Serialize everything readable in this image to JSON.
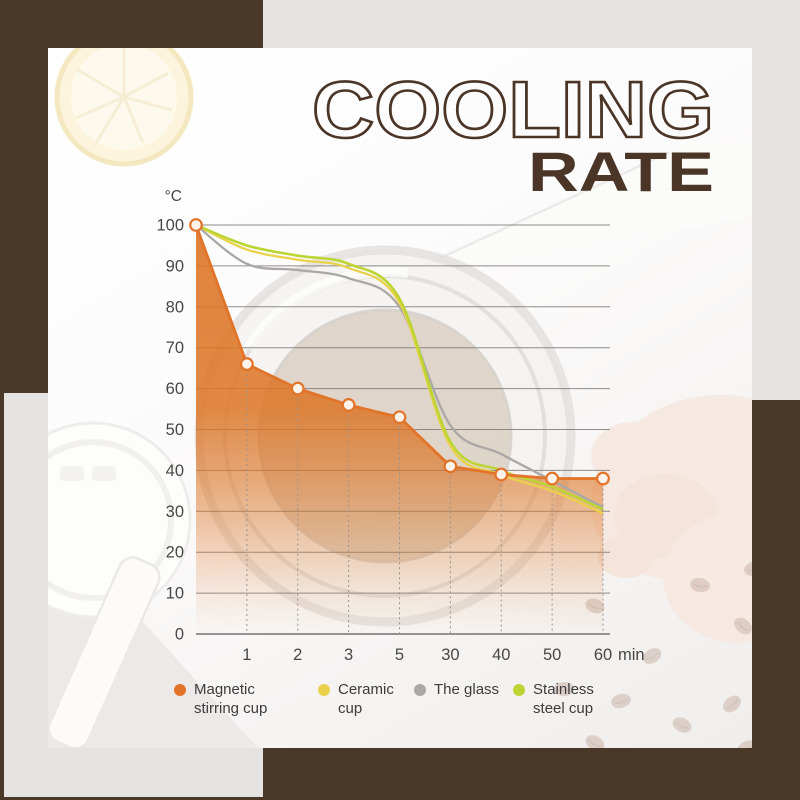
{
  "title": {
    "line1": "COOLING",
    "line2": "RATE",
    "color": "#4a3526"
  },
  "palette": {
    "background_brown": "#493828",
    "background_gray": "#e4e3e2",
    "accent_orange": "#e2742a"
  },
  "chart_data": {
    "type": "line",
    "title": "Cooling Rate",
    "y_unit": "°C",
    "x_unit": "min",
    "ylim": [
      0,
      100
    ],
    "y_ticks": [
      0,
      10,
      20,
      30,
      40,
      50,
      60,
      70,
      80,
      90,
      100
    ],
    "x_values": [
      0,
      1,
      2,
      3,
      5,
      30,
      40,
      50,
      60
    ],
    "x_tick_labels": [
      "1",
      "2",
      "3",
      "5",
      "30",
      "40",
      "50",
      "60"
    ],
    "grid": "horizontal",
    "legend_position": "bottom",
    "series": [
      {
        "name": "Magnetic stirring cup",
        "color": "#e2742a",
        "marker_fill": "#fdf3ea",
        "line_style": "linear",
        "markers": true,
        "area_fill": true,
        "values": [
          100,
          66,
          60,
          56,
          53,
          41,
          39,
          38,
          38
        ]
      },
      {
        "name": "Ceramic cup",
        "color": "#e9d24a",
        "line_style": "smooth",
        "markers": false,
        "area_fill": false,
        "values": [
          100,
          94,
          91.5,
          89.5,
          81,
          46,
          39,
          35,
          29.5
        ]
      },
      {
        "name": "The glass",
        "color": "#aaa7a5",
        "line_style": "smooth",
        "markers": false,
        "area_fill": false,
        "values": [
          100,
          90.5,
          89,
          87,
          80,
          51,
          44,
          37.5,
          31
        ]
      },
      {
        "name": "Stainless steel cup",
        "color": "#bcd434",
        "line_style": "smooth",
        "markers": false,
        "area_fill": false,
        "values": [
          100,
          95,
          92.5,
          90.5,
          82,
          47,
          40,
          36,
          30.5
        ]
      }
    ]
  }
}
